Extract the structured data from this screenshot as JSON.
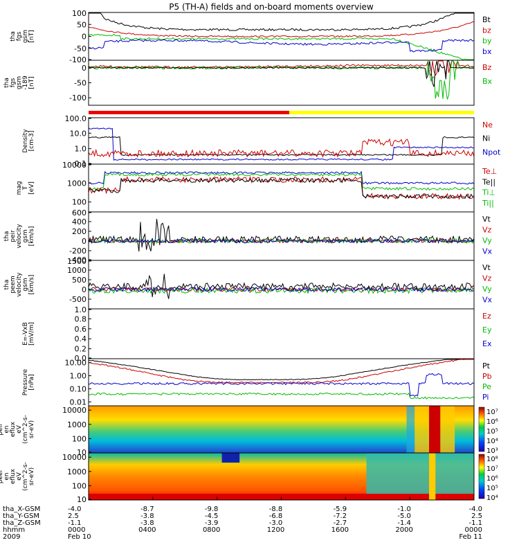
{
  "chart_data": {
    "type": "line",
    "title": "P5 (TH-A) fields and on-board moments overview",
    "panels": [
      {
        "key": "fgs",
        "ylabel": [
          "tha",
          "fgs",
          "gsm",
          "[nT]"
        ],
        "yrange": [
          -100,
          100
        ],
        "ticks": [
          "100",
          "50",
          "0",
          "-50",
          "-100"
        ],
        "tick_values": [
          100,
          50,
          0,
          -50,
          -100
        ],
        "legend": [
          {
            "name": "Bt",
            "color": "#000000"
          },
          {
            "name": "bz",
            "color": "#cc0000"
          },
          {
            "name": "by",
            "color": "#00bb00"
          },
          {
            "name": "bx",
            "color": "#0000cc"
          }
        ]
      },
      {
        "key": "fgs_dsl",
        "ylabel": [
          "tha",
          "fgs",
          "gsm",
          "-189",
          "[nT]"
        ],
        "yrange": [
          -125,
          25
        ],
        "ticks": [
          "0",
          "-50",
          "-100"
        ],
        "tick_values": [
          0,
          -50,
          -100
        ],
        "legend": [
          {
            "name": "Bz",
            "color": "#cc0000"
          },
          {
            "name": "Bx",
            "color": "#00bb00"
          }
        ]
      },
      {
        "key": "density",
        "ylabel": [
          "Density",
          "[cm-3]"
        ],
        "scale": "log",
        "yrange": [
          0.1,
          100
        ],
        "ticks": [
          "100.0",
          "10.0",
          "1.0",
          "0.1"
        ],
        "tick_values": [
          100,
          10,
          1,
          0.1
        ],
        "legend": [
          {
            "name": "Ne",
            "color": "#cc0000"
          },
          {
            "name": "Ni",
            "color": "#000000"
          },
          {
            "name": "Npot",
            "color": "#0000cc"
          }
        ]
      },
      {
        "key": "temp",
        "ylabel": [
          "mag",
          "T",
          "[eV]"
        ],
        "scale": "log",
        "yrange": [
          30,
          10000
        ],
        "ticks": [
          "10000",
          "1000",
          "100"
        ],
        "tick_values": [
          10000,
          1000,
          100
        ],
        "legend": [
          {
            "name": "Te⊥",
            "color": "#cc0000"
          },
          {
            "name": "Te||",
            "color": "#000000"
          },
          {
            "name": "Ti⊥",
            "color": "#00bb00"
          },
          {
            "name": "Ti||",
            "color": "#00bb00"
          }
        ]
      },
      {
        "key": "peir",
        "ylabel": [
          "tha",
          "peir",
          "velocity",
          "gsm",
          "[km/s]"
        ],
        "yrange": [
          -400,
          600
        ],
        "ticks": [
          "600",
          "400",
          "200",
          "0",
          "-200",
          "-400"
        ],
        "tick_values": [
          600,
          400,
          200,
          0,
          -200,
          -400
        ],
        "legend": [
          {
            "name": "Vt",
            "color": "#000000"
          },
          {
            "name": "Vz",
            "color": "#cc0000"
          },
          {
            "name": "Vy",
            "color": "#00bb00"
          },
          {
            "name": "Vx",
            "color": "#0000cc"
          }
        ]
      },
      {
        "key": "peem",
        "ylabel": [
          "tha",
          "peem",
          "velocity",
          "gsm",
          "[km/s]"
        ],
        "yrange": [
          -1000,
          1500
        ],
        "ticks": [
          "1500",
          "1000",
          "500",
          "0",
          "-500"
        ],
        "tick_values": [
          1500,
          1000,
          500,
          0,
          -500
        ],
        "legend": [
          {
            "name": "Vt",
            "color": "#000000"
          },
          {
            "name": "Vz",
            "color": "#cc0000"
          },
          {
            "name": "Vy",
            "color": "#00bb00"
          },
          {
            "name": "Vx",
            "color": "#0000cc"
          }
        ]
      },
      {
        "key": "efield",
        "ylabel": [
          "E=-VxB",
          "[mV/m]"
        ],
        "yrange": [
          0,
          1
        ],
        "ticks": [
          "1.0",
          "0.8",
          "0.6",
          "0.4",
          "0.2",
          "0.0"
        ],
        "tick_values": [
          1.0,
          0.8,
          0.6,
          0.4,
          0.2,
          0.0
        ],
        "legend": [
          {
            "name": "Ez",
            "color": "#cc0000"
          },
          {
            "name": "Ey",
            "color": "#00bb00"
          },
          {
            "name": "Ex",
            "color": "#0000cc"
          }
        ]
      },
      {
        "key": "pressure",
        "ylabel": [
          "Pressure",
          "[nPa]"
        ],
        "scale": "log",
        "yrange": [
          0.005,
          20
        ],
        "ticks": [
          "10.00",
          "1.00",
          "0.10",
          "0.01"
        ],
        "tick_values": [
          10,
          1,
          0.1,
          0.01
        ],
        "legend": [
          {
            "name": "Pt",
            "color": "#000000"
          },
          {
            "name": "Pb",
            "color": "#cc0000"
          },
          {
            "name": "Pe",
            "color": "#00bb00"
          },
          {
            "name": "Pi",
            "color": "#0000cc"
          }
        ]
      },
      {
        "key": "peir_spec",
        "type": "heatmap",
        "ylabel": [
          "tha",
          "peir",
          "en",
          "eflux",
          "eV",
          "(cm^2-s-",
          "sr-eV)"
        ],
        "ticks": [
          "10000",
          "1000",
          "100",
          "10"
        ],
        "tick_values": [
          10000,
          1000,
          100,
          10
        ],
        "colorbar_labels": [
          "10⁷",
          "10⁶",
          "10⁵",
          "10⁴",
          "10³"
        ]
      },
      {
        "key": "peer_spec",
        "type": "heatmap",
        "ylabel": [
          "tha",
          "peer",
          "en",
          "eflux",
          "eV",
          "(cm^2-s-",
          "sr-eV)"
        ],
        "ticks": [
          "10000",
          "1000",
          "100",
          "10"
        ],
        "tick_values": [
          10000,
          1000,
          100,
          10
        ],
        "colorbar_labels": [
          "10⁸",
          "10⁷",
          "10⁶",
          "10⁵",
          "10⁴"
        ]
      }
    ],
    "x_axis": {
      "row_labels": [
        "tha_X-GSM",
        "tha_Y-GSM",
        "tha_Z-GSM",
        "hhmm",
        "2009"
      ],
      "tick_hours": [
        0,
        4,
        8,
        12,
        16,
        20,
        24
      ],
      "columns": [
        [
          "-4.0",
          "2.5",
          "-1.1",
          "0000",
          "Feb 10"
        ],
        [
          "-8.7",
          "-3.8",
          "-3.8",
          "0400",
          ""
        ],
        [
          "-9.8",
          "-4.5",
          "-3.9",
          "0800",
          ""
        ],
        [
          "-8.8",
          "-6.8",
          "-3.0",
          "1200",
          ""
        ],
        [
          "-5.9",
          "-7.2",
          "-2.7",
          "1600",
          ""
        ],
        [
          "-1.0",
          "-5.0",
          "-1.4",
          "2000",
          ""
        ],
        [
          "-4.0",
          "2.5",
          "-1.1",
          "0000",
          "Feb 11"
        ]
      ]
    },
    "colors": {
      "bar_red": "#ee0000",
      "bar_yellow": "#ffff00"
    }
  }
}
